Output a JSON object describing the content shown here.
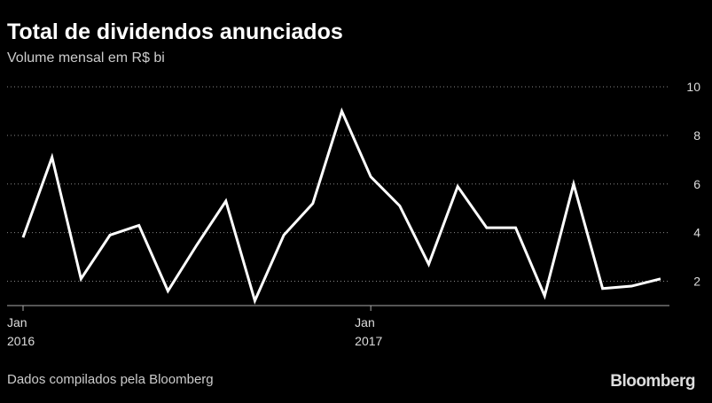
{
  "chart_data": {
    "type": "line",
    "title": "Total de dividendos anunciados",
    "subtitle": "Volume mensal em R$ bi",
    "x": [
      "2016-01",
      "2016-02",
      "2016-03",
      "2016-04",
      "2016-05",
      "2016-06",
      "2016-07",
      "2016-08",
      "2016-09",
      "2016-10",
      "2016-11",
      "2016-12",
      "2017-01",
      "2017-02",
      "2017-03",
      "2017-04",
      "2017-05",
      "2017-06",
      "2017-07",
      "2017-08",
      "2017-09",
      "2017-10",
      "2017-11"
    ],
    "series": [
      {
        "name": "Dividendos",
        "color": "#ffffff",
        "values": [
          3.8,
          7.1,
          2.1,
          3.9,
          4.3,
          1.6,
          3.5,
          5.3,
          1.2,
          3.9,
          5.2,
          9.0,
          6.3,
          5.1,
          2.7,
          5.9,
          4.2,
          4.2,
          1.4,
          6.0,
          1.7,
          1.8,
          2.1
        ]
      }
    ],
    "ylim": [
      1,
      10
    ],
    "yticks": [
      2,
      4,
      6,
      8,
      10
    ],
    "grid": true,
    "xticks": [
      {
        "value": "2016-01",
        "label": [
          "Jan",
          "2016"
        ]
      },
      {
        "value": "2017-01",
        "label": [
          "Jan",
          "2017"
        ]
      }
    ],
    "source": "Dados compilados pela Bloomberg",
    "brand": "Bloomberg"
  }
}
